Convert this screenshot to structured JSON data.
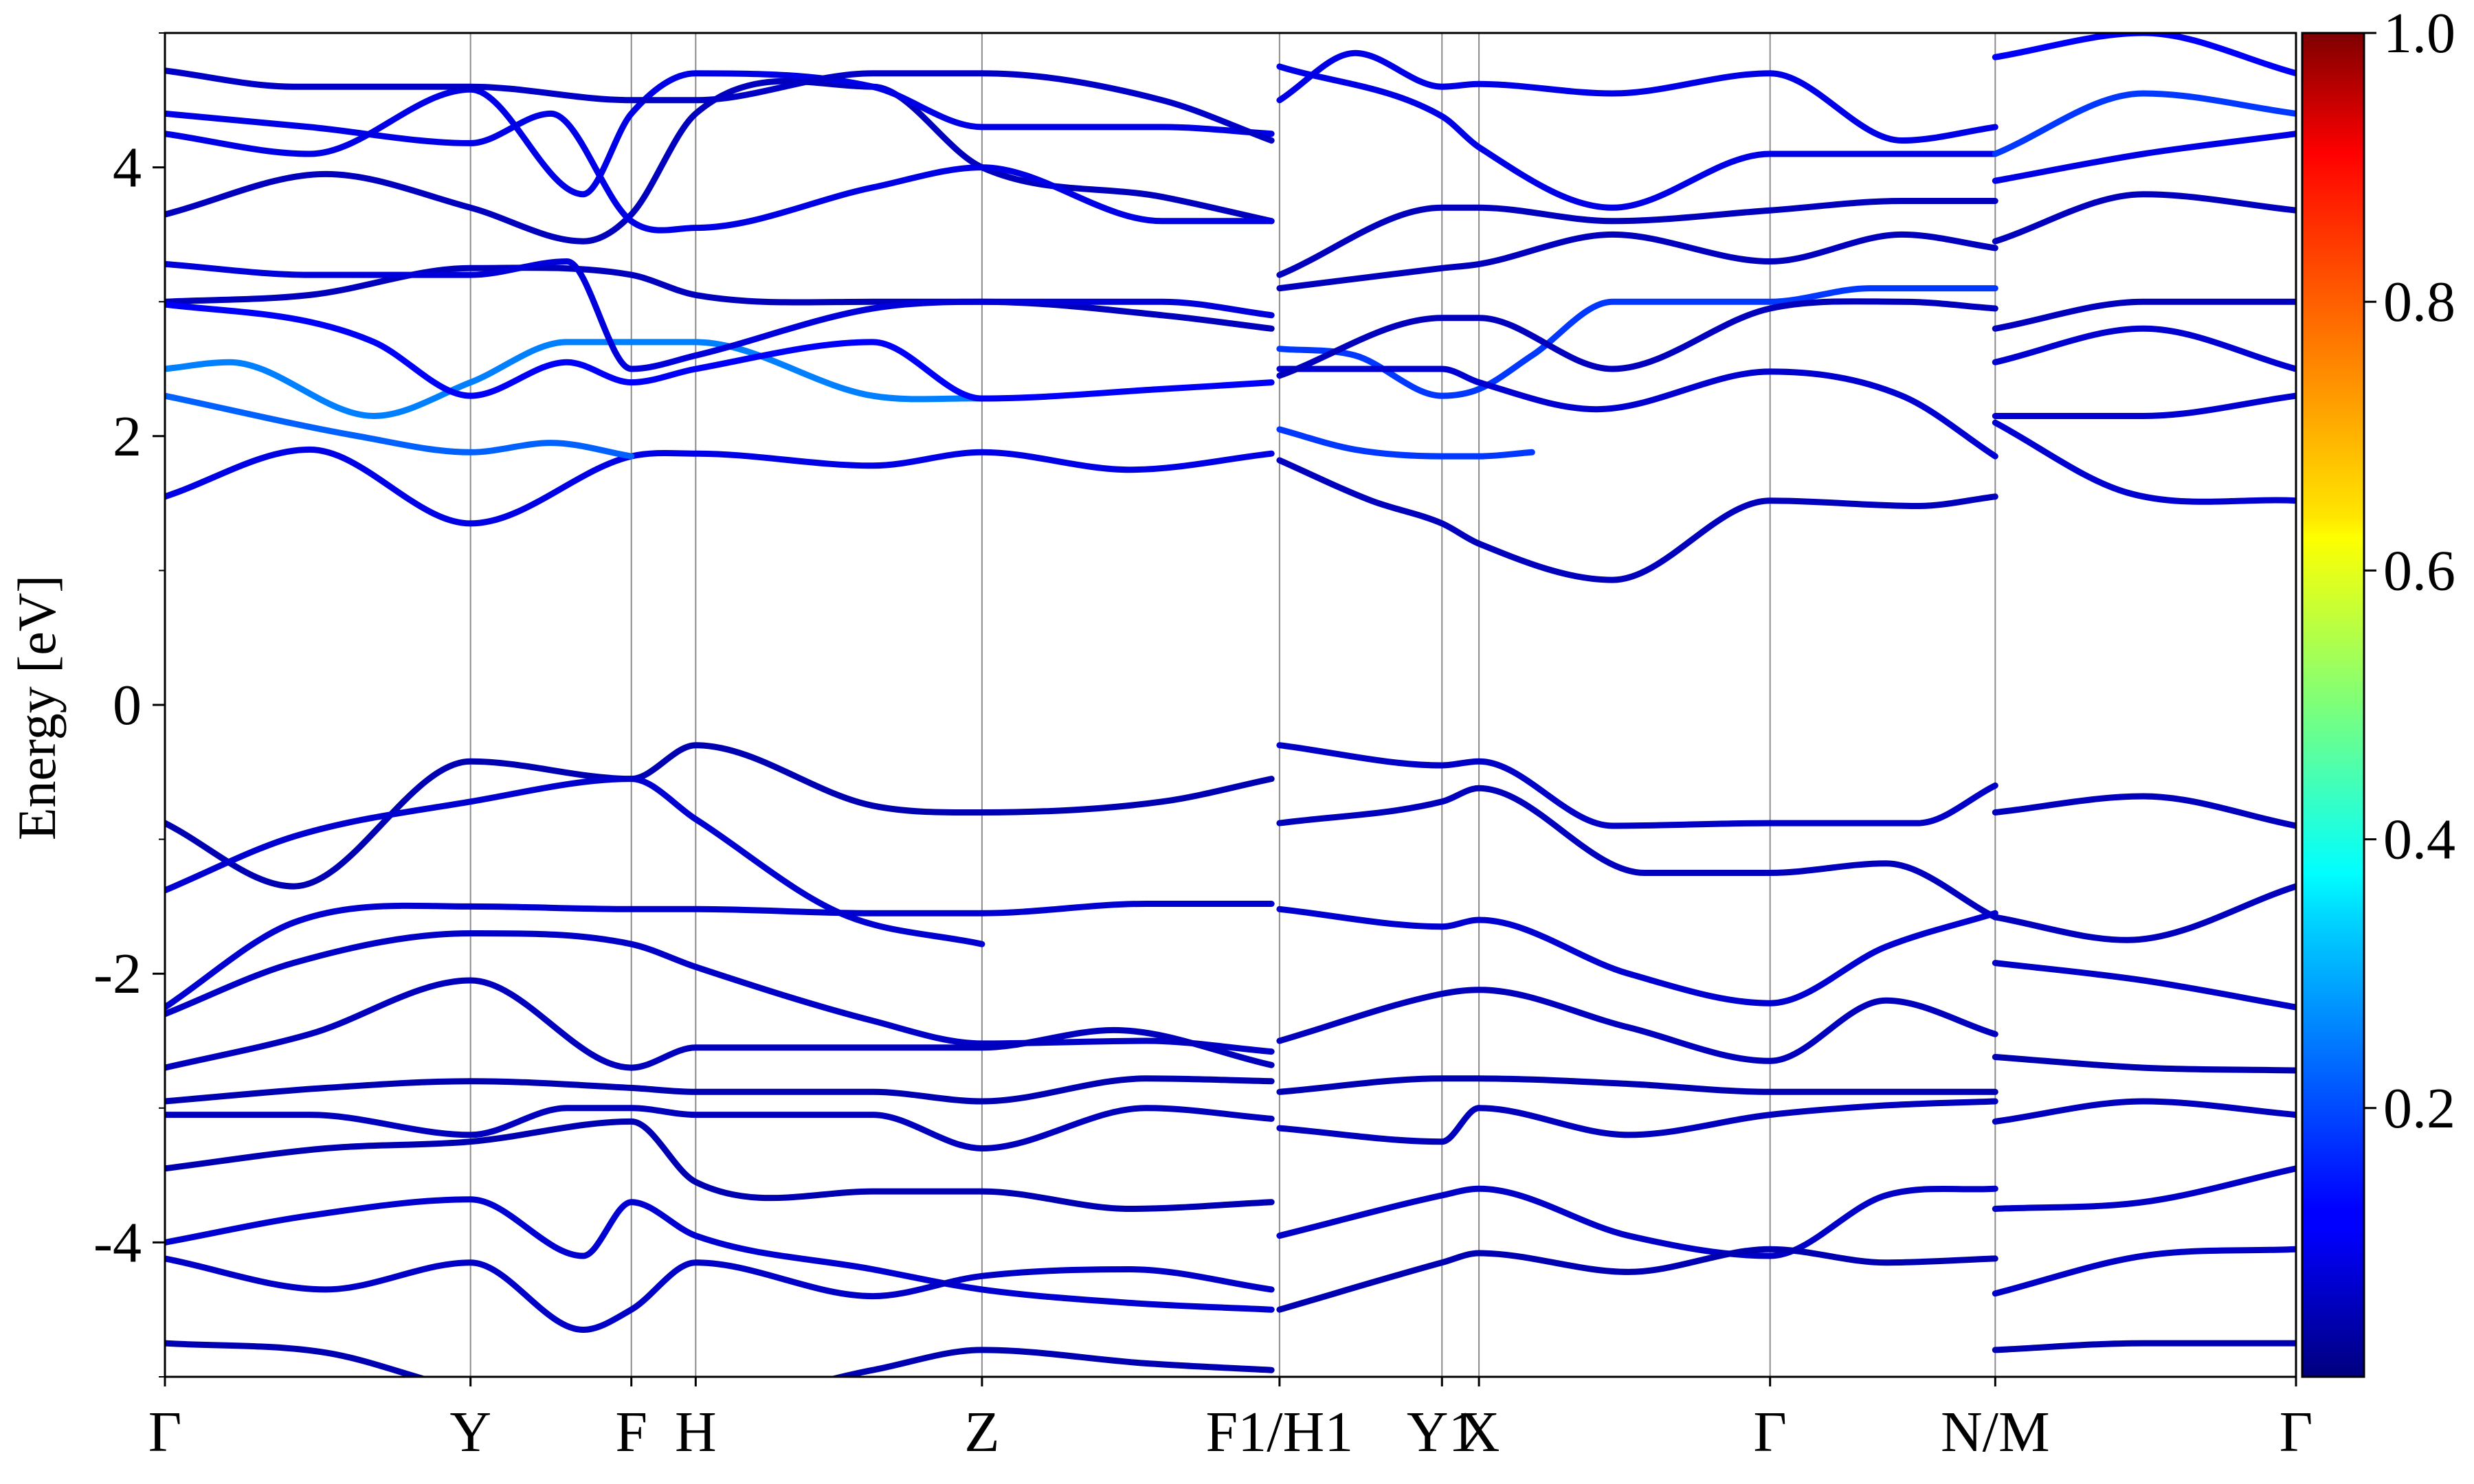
{
  "chart_data": {
    "type": "line",
    "ylabel": "Energy [eV]",
    "ylim": [
      -5,
      5
    ],
    "yticks": [
      "-4",
      "-2",
      "0",
      "2",
      "4"
    ],
    "xlim": [
      0,
      13.25
    ],
    "kpath": [
      {
        "label": "Γ",
        "x": 0
      },
      {
        "label": "Y",
        "x": 1.9
      },
      {
        "label": "F",
        "x": 2.9
      },
      {
        "label": "H",
        "x": 3.3
      },
      {
        "label": "Z",
        "x": 5.08
      },
      {
        "label": "F1/H1",
        "x": 6.93
      },
      {
        "label": "Y1",
        "x": 7.94
      },
      {
        "label": "X",
        "x": 8.17
      },
      {
        "label": "Γ",
        "x": 9.98
      },
      {
        "label": "N/M",
        "x": 11.38
      },
      {
        "label": "Γ",
        "x": 13.25
      }
    ],
    "colorbar": {
      "colormap": "jet",
      "range": [
        0,
        1
      ],
      "ticks": [
        "0.2",
        "0.4",
        "0.6",
        "0.8",
        "1.0"
      ]
    },
    "series": [
      {
        "color_value": 0.1,
        "x": [
          0,
          0.9,
          1.9,
          2.9,
          3.3,
          4.4,
          5.08,
          6.0,
          6.88
        ],
        "y": [
          1.55,
          1.9,
          1.35,
          1.85,
          1.87,
          1.78,
          1.88,
          1.75,
          1.87
        ]
      },
      {
        "color_value": 0.06,
        "x": [
          6.93,
          7.5,
          7.94,
          8.17,
          9.0,
          9.98,
          10.9,
          11.38
        ],
        "y": [
          1.82,
          1.52,
          1.35,
          1.2,
          0.93,
          1.52,
          1.48,
          1.55
        ]
      },
      {
        "color_value": 0.08,
        "x": [
          11.38,
          12.2,
          13.25
        ],
        "y": [
          2.1,
          1.58,
          1.52
        ]
      },
      {
        "color_value": 0.22,
        "x": [
          0,
          1.2,
          1.9,
          2.4,
          2.9
        ],
        "y": [
          2.3,
          2.0,
          1.88,
          1.95,
          1.85
        ]
      },
      {
        "color_value": 0.18,
        "x": [
          6.93,
          7.4,
          7.94,
          8.17,
          8.5
        ],
        "y": [
          2.05,
          1.9,
          1.85,
          1.85,
          1.88
        ]
      },
      {
        "color_value": 0.25,
        "x": [
          0,
          0.4,
          1.3,
          1.9,
          2.5,
          3.3,
          4.4,
          5.08
        ],
        "y": [
          2.5,
          2.55,
          2.15,
          2.4,
          2.7,
          2.7,
          2.3,
          2.28
        ]
      },
      {
        "color_value": 0.05,
        "x": [
          0,
          0.8,
          1.9,
          2.9,
          3.3,
          4.4,
          5.08,
          6.2,
          6.88
        ],
        "y": [
          -0.88,
          -1.35,
          -0.42,
          -0.55,
          -0.3,
          -0.75,
          -0.8,
          -0.72,
          -0.55
        ]
      },
      {
        "color_value": 0.08,
        "x": [
          0,
          0.8,
          1.9,
          2.9,
          3.3,
          4.2,
          5.08
        ],
        "y": [
          -1.38,
          -0.98,
          -0.72,
          -0.55,
          -0.85,
          -1.55,
          -1.78
        ]
      },
      {
        "color_value": 0.07,
        "x": [
          6.93,
          7.94,
          8.17,
          9.0,
          9.98,
          10.9,
          11.38
        ],
        "y": [
          -0.3,
          -0.45,
          -0.42,
          -0.9,
          -0.88,
          -0.88,
          -0.6
        ]
      },
      {
        "color_value": 0.06,
        "x": [
          6.93,
          7.94,
          8.17,
          9.2,
          9.98,
          10.7,
          11.38
        ],
        "y": [
          -0.88,
          -0.72,
          -0.62,
          -1.25,
          -1.25,
          -1.18,
          -1.58
        ]
      },
      {
        "color_value": 0.06,
        "x": [
          11.38,
          12.3,
          13.25
        ],
        "y": [
          -0.8,
          -0.68,
          -0.9
        ]
      },
      {
        "color_value": 0.08,
        "x": [
          0,
          0.8,
          1.9,
          2.9,
          3.3,
          4.4,
          5.08,
          6.1,
          6.88
        ],
        "y": [
          -2.25,
          -1.62,
          -1.5,
          -1.52,
          -1.52,
          -1.55,
          -1.55,
          -1.48,
          -1.48
        ]
      },
      {
        "color_value": 0.08,
        "x": [
          6.93,
          7.94,
          8.17,
          9.1,
          9.98,
          10.7,
          11.38
        ],
        "y": [
          -1.52,
          -1.65,
          -1.6,
          -2.0,
          -2.22,
          -1.8,
          -1.55
        ]
      },
      {
        "color_value": 0.07,
        "x": [
          0,
          0.8,
          1.9,
          2.9,
          3.3,
          4.4,
          5.08,
          6.1,
          6.88
        ],
        "y": [
          -2.3,
          -1.92,
          -1.7,
          -1.78,
          -1.95,
          -2.35,
          -2.52,
          -2.5,
          -2.58
        ]
      },
      {
        "color_value": 0.06,
        "x": [
          0,
          0.9,
          1.9,
          2.9,
          3.3,
          4.3,
          5.08,
          5.9,
          6.88
        ],
        "y": [
          -2.7,
          -2.45,
          -2.05,
          -2.7,
          -2.55,
          -2.55,
          -2.55,
          -2.42,
          -2.68
        ]
      },
      {
        "color_value": 0.05,
        "x": [
          0,
          1.0,
          1.9,
          2.9,
          3.3,
          4.4,
          5.08,
          6.1,
          6.88
        ],
        "y": [
          -2.95,
          -2.85,
          -2.8,
          -2.85,
          -2.88,
          -2.88,
          -2.95,
          -2.78,
          -2.8
        ]
      },
      {
        "color_value": 0.06,
        "x": [
          0,
          0.9,
          1.9,
          2.5,
          2.9,
          3.3,
          4.4,
          5.08,
          6.1,
          6.88
        ],
        "y": [
          -3.05,
          -3.05,
          -3.2,
          -3.0,
          -3.0,
          -3.05,
          -3.05,
          -3.3,
          -3.0,
          -3.08
        ]
      },
      {
        "color_value": 0.05,
        "x": [
          0,
          1.0,
          1.9,
          2.9,
          3.3,
          4.4,
          5.08,
          6.0,
          6.88
        ],
        "y": [
          -3.45,
          -3.3,
          -3.25,
          -3.1,
          -3.55,
          -3.62,
          -3.62,
          -3.75,
          -3.7
        ]
      },
      {
        "color_value": 0.08,
        "x": [
          0,
          0.9,
          1.9,
          2.6,
          2.9,
          3.3,
          4.4,
          5.08,
          6.0,
          6.88
        ],
        "y": [
          -4.0,
          -3.8,
          -3.68,
          -4.1,
          -3.7,
          -3.95,
          -4.2,
          -4.35,
          -4.45,
          -4.5
        ]
      },
      {
        "color_value": 0.07,
        "x": [
          0,
          1.0,
          1.9,
          2.6,
          2.9,
          3.3,
          4.4,
          5.08,
          6.0,
          6.88
        ],
        "y": [
          -4.12,
          -4.35,
          -4.15,
          -4.65,
          -4.5,
          -4.15,
          -4.4,
          -4.25,
          -4.2,
          -4.35
        ]
      },
      {
        "color_value": 0.05,
        "x": [
          0,
          1.0,
          1.9,
          2.9,
          3.3,
          4.4,
          5.08,
          6.1,
          6.88
        ],
        "y": [
          -4.75,
          -4.82,
          -5.1,
          -5.2,
          -5.2,
          -4.95,
          -4.8,
          -4.9,
          -4.95
        ]
      },
      {
        "color_value": 0.06,
        "x": [
          6.93,
          7.94,
          8.17,
          9.1,
          9.98,
          10.7,
          11.38
        ],
        "y": [
          -2.5,
          -2.15,
          -2.12,
          -2.4,
          -2.65,
          -2.2,
          -2.45
        ]
      },
      {
        "color_value": 0.05,
        "x": [
          6.93,
          7.94,
          8.17,
          9.1,
          9.98,
          10.7,
          11.38
        ],
        "y": [
          -2.88,
          -2.78,
          -2.78,
          -2.82,
          -2.88,
          -2.88,
          -2.88
        ]
      },
      {
        "color_value": 0.06,
        "x": [
          6.93,
          7.94,
          8.17,
          9.1,
          9.98,
          10.7,
          11.38
        ],
        "y": [
          -3.15,
          -3.25,
          -3.0,
          -3.2,
          -3.05,
          -2.98,
          -2.95
        ]
      },
      {
        "color_value": 0.07,
        "x": [
          6.93,
          7.94,
          8.17,
          9.1,
          9.98,
          10.7,
          11.38
        ],
        "y": [
          -3.95,
          -3.65,
          -3.6,
          -3.95,
          -4.1,
          -3.65,
          -3.6
        ]
      },
      {
        "color_value": 0.05,
        "x": [
          6.93,
          7.94,
          8.17,
          9.1,
          9.98,
          10.7,
          11.38
        ],
        "y": [
          -4.5,
          -4.15,
          -4.08,
          -4.22,
          -4.05,
          -4.15,
          -4.12
        ]
      },
      {
        "color_value": 0.06,
        "x": [
          11.38,
          12.2,
          13.25
        ],
        "y": [
          -1.58,
          -1.75,
          -1.35
        ]
      },
      {
        "color_value": 0.07,
        "x": [
          11.38,
          12.3,
          13.25
        ],
        "y": [
          -1.92,
          -2.05,
          -2.25
        ]
      },
      {
        "color_value": 0.05,
        "x": [
          11.38,
          12.3,
          13.25
        ],
        "y": [
          -2.62,
          -2.7,
          -2.72
        ]
      },
      {
        "color_value": 0.06,
        "x": [
          11.38,
          12.3,
          13.25
        ],
        "y": [
          -3.1,
          -2.95,
          -3.05
        ]
      },
      {
        "color_value": 0.07,
        "x": [
          11.38,
          12.3,
          13.25
        ],
        "y": [
          -3.75,
          -3.7,
          -3.45
        ]
      },
      {
        "color_value": 0.07,
        "x": [
          11.38,
          12.3,
          13.25
        ],
        "y": [
          -4.38,
          -4.1,
          -4.05
        ]
      },
      {
        "color_value": 0.05,
        "x": [
          11.38,
          12.3,
          13.25
        ],
        "y": [
          -4.8,
          -4.75,
          -4.75
        ]
      },
      {
        "color_value": 0.06,
        "x": [
          0,
          0.9,
          1.9,
          2.9,
          3.3,
          4.4,
          5.08,
          6.2,
          6.88
        ],
        "y": [
          3.0,
          3.05,
          3.25,
          3.2,
          3.05,
          3.0,
          3.0,
          2.9,
          2.8
        ]
      },
      {
        "color_value": 0.09,
        "x": [
          0,
          0.9,
          1.9,
          2.5,
          2.9,
          3.3,
          4.4,
          5.08,
          6.2,
          6.88
        ],
        "y": [
          3.28,
          3.2,
          3.2,
          3.3,
          2.5,
          2.6,
          2.95,
          3.0,
          3.0,
          2.9
        ]
      },
      {
        "color_value": 0.12,
        "x": [
          0,
          0.9,
          1.3,
          1.9,
          2.5,
          2.9,
          3.3,
          4.4,
          5.08,
          6.2,
          6.88
        ],
        "y": [
          2.98,
          2.85,
          2.7,
          2.3,
          2.55,
          2.4,
          2.5,
          2.7,
          2.28,
          2.35,
          2.4
        ]
      },
      {
        "color_value": 0.06,
        "x": [
          0,
          1.0,
          1.9,
          2.6,
          2.9,
          3.3,
          4.4,
          5.08,
          6.2,
          6.88
        ],
        "y": [
          3.65,
          3.95,
          3.7,
          3.45,
          3.65,
          4.4,
          4.6,
          4.0,
          3.78,
          3.6
        ]
      },
      {
        "color_value": 0.1,
        "x": [
          0,
          0.9,
          1.9,
          2.6,
          2.9,
          3.3,
          4.4,
          5.08,
          6.2,
          6.88
        ],
        "y": [
          4.25,
          4.1,
          4.58,
          3.8,
          4.4,
          4.7,
          4.6,
          4.3,
          4.3,
          4.25
        ]
      },
      {
        "color_value": 0.1,
        "x": [
          0,
          0.9,
          1.9,
          2.4,
          2.9,
          3.3,
          4.4,
          5.08,
          6.2,
          6.88
        ],
        "y": [
          4.4,
          4.3,
          4.18,
          4.4,
          3.6,
          3.55,
          3.85,
          4.0,
          3.6,
          3.6
        ]
      },
      {
        "color_value": 0.07,
        "x": [
          0,
          0.8,
          1.9,
          2.9,
          3.3,
          4.4,
          5.08,
          6.2,
          6.88
        ],
        "y": [
          4.72,
          4.6,
          4.6,
          4.5,
          4.5,
          4.7,
          4.7,
          4.5,
          4.2
        ]
      },
      {
        "color_value": 0.18,
        "x": [
          6.93,
          7.4,
          7.94,
          8.17,
          8.5,
          9.0,
          9.98,
          10.6,
          11.38
        ],
        "y": [
          2.65,
          2.6,
          2.3,
          2.35,
          2.6,
          3.0,
          3.0,
          3.1,
          3.1
        ]
      },
      {
        "color_value": 0.08,
        "x": [
          6.93,
          7.4,
          7.94,
          8.17,
          8.9,
          9.98,
          10.8,
          11.38
        ],
        "y": [
          2.5,
          2.5,
          2.5,
          2.4,
          2.2,
          2.48,
          2.3,
          1.85
        ]
      },
      {
        "color_value": 0.06,
        "x": [
          6.93,
          7.94,
          8.17,
          9.0,
          9.98,
          10.8,
          11.38
        ],
        "y": [
          2.45,
          2.88,
          2.88,
          2.5,
          2.95,
          3.0,
          2.95
        ]
      },
      {
        "color_value": 0.06,
        "x": [
          6.93,
          7.94,
          8.17,
          9.0,
          9.98,
          10.8,
          11.38
        ],
        "y": [
          3.1,
          3.25,
          3.28,
          3.5,
          3.3,
          3.5,
          3.4
        ]
      },
      {
        "color_value": 0.06,
        "x": [
          6.93,
          7.94,
          8.17,
          9.0,
          9.98,
          10.8,
          11.38
        ],
        "y": [
          3.2,
          3.7,
          3.7,
          3.6,
          3.68,
          3.75,
          3.75
        ]
      },
      {
        "color_value": 0.1,
        "x": [
          6.93,
          7.4,
          7.94,
          8.17,
          9.0,
          9.98,
          10.8,
          11.38
        ],
        "y": [
          4.5,
          4.85,
          4.6,
          4.62,
          4.55,
          4.7,
          4.2,
          4.3
        ]
      },
      {
        "color_value": 0.1,
        "x": [
          6.93,
          7.94,
          8.17,
          9.0,
          9.98,
          10.8,
          11.38
        ],
        "y": [
          4.75,
          4.38,
          4.15,
          3.7,
          4.1,
          4.1,
          4.1
        ]
      },
      {
        "color_value": 0.08,
        "x": [
          11.38,
          12.3,
          13.25
        ],
        "y": [
          2.15,
          2.15,
          2.3
        ]
      },
      {
        "color_value": 0.08,
        "x": [
          11.38,
          12.3,
          13.25
        ],
        "y": [
          2.55,
          2.8,
          2.5
        ]
      },
      {
        "color_value": 0.06,
        "x": [
          11.38,
          12.3,
          13.25
        ],
        "y": [
          2.8,
          3.0,
          3.0
        ]
      },
      {
        "color_value": 0.06,
        "x": [
          11.38,
          12.3,
          13.25
        ],
        "y": [
          3.45,
          3.8,
          3.68
        ]
      },
      {
        "color_value": 0.1,
        "x": [
          11.38,
          12.3,
          13.25
        ],
        "y": [
          3.9,
          4.1,
          4.25
        ]
      },
      {
        "color_value": 0.18,
        "x": [
          11.38,
          12.3,
          13.25
        ],
        "y": [
          4.1,
          4.55,
          4.4
        ]
      },
      {
        "color_value": 0.12,
        "x": [
          11.38,
          12.3,
          13.25
        ],
        "y": [
          4.82,
          5.0,
          4.7
        ]
      }
    ]
  }
}
